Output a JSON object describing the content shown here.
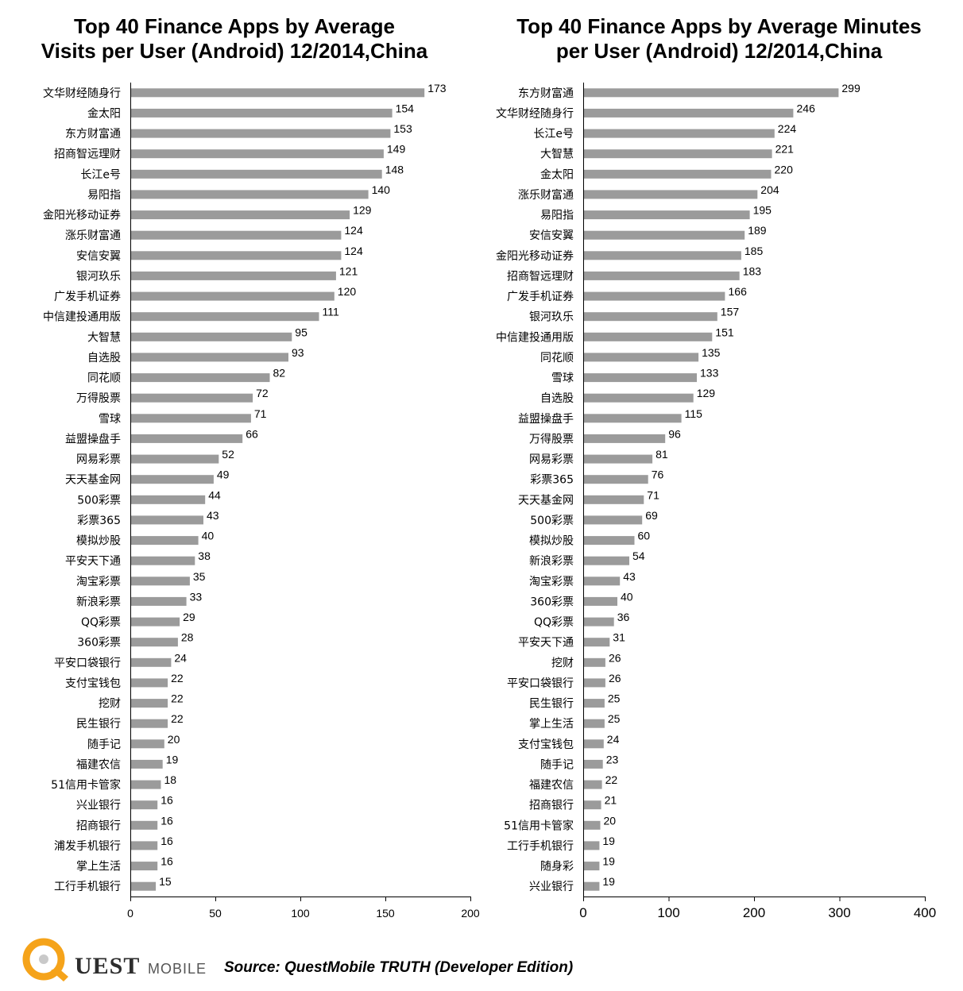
{
  "colors": {
    "bar": "#9b9b9b",
    "axis": "#000000",
    "text": "#000000",
    "logo_orange": "#f5a31a"
  },
  "chart_data": [
    {
      "type": "bar",
      "orientation": "horizontal",
      "title": "Top 40 Finance Apps by Average\nVisits per User (Android)  12/2014,China",
      "xlim": [
        0,
        200
      ],
      "xticks": [
        "0",
        "50",
        "100",
        "150",
        "200"
      ],
      "grid": false,
      "categories": [
        "文华财经随身行",
        "金太阳",
        "东方财富通",
        "招商智远理财",
        "长江e号",
        "易阳指",
        "金阳光移动证券",
        "涨乐财富通",
        "安信安翼",
        "银河玖乐",
        "广发手机证券",
        "中信建投通用版",
        "大智慧",
        "自选股",
        "同花顺",
        "万得股票",
        "雪球",
        "益盟操盘手",
        "网易彩票",
        "天天基金网",
        "500彩票",
        "彩票365",
        "模拟炒股",
        "平安天下通",
        "淘宝彩票",
        "新浪彩票",
        "QQ彩票",
        "360彩票",
        "平安口袋银行",
        "支付宝钱包",
        "挖财",
        "民生银行",
        "随手记",
        "福建农信",
        "51信用卡管家",
        "兴业银行",
        "招商银行",
        "浦发手机银行",
        "掌上生活",
        "工行手机银行"
      ],
      "values": [
        173,
        154,
        153,
        149,
        148,
        140,
        129,
        124,
        124,
        121,
        120,
        111,
        95,
        93,
        82,
        72,
        71,
        66,
        52,
        49,
        44,
        43,
        40,
        38,
        35,
        33,
        29,
        28,
        24,
        22,
        22,
        22,
        20,
        19,
        18,
        16,
        16,
        16,
        16,
        15
      ]
    },
    {
      "type": "bar",
      "orientation": "horizontal",
      "title": "Top 40 Finance Apps by Average Minutes\nper User  (Android)  12/2014,China",
      "xlim": [
        0,
        400
      ],
      "xticks": [
        "0",
        "100",
        "200",
        "300",
        "400"
      ],
      "grid": false,
      "categories": [
        "东方财富通",
        "文华财经随身行",
        "长江e号",
        "大智慧",
        "金太阳",
        "涨乐财富通",
        "易阳指",
        "安信安翼",
        "金阳光移动证券",
        "招商智远理财",
        "广发手机证券",
        "银河玖乐",
        "中信建投通用版",
        "同花顺",
        "雪球",
        "自选股",
        "益盟操盘手",
        "万得股票",
        "网易彩票",
        "彩票365",
        "天天基金网",
        "500彩票",
        "模拟炒股",
        "新浪彩票",
        "淘宝彩票",
        "360彩票",
        "QQ彩票",
        "平安天下通",
        "挖财",
        "平安口袋银行",
        "民生银行",
        "掌上生活",
        "支付宝钱包",
        "随手记",
        "福建农信",
        "招商银行",
        "51信用卡管家",
        "工行手机银行",
        "随身彩",
        "兴业银行"
      ],
      "values": [
        299,
        246,
        224,
        221,
        220,
        204,
        195,
        189,
        185,
        183,
        166,
        157,
        151,
        135,
        133,
        129,
        115,
        96,
        81,
        76,
        71,
        69,
        60,
        54,
        43,
        40,
        36,
        31,
        26,
        26,
        25,
        25,
        24,
        23,
        22,
        21,
        20,
        19,
        19,
        19
      ]
    }
  ],
  "footer": {
    "brand": "UEST",
    "brand_sub": "MOBILE",
    "source": "Source: QuestMobile TRUTH (Developer Edition)"
  }
}
